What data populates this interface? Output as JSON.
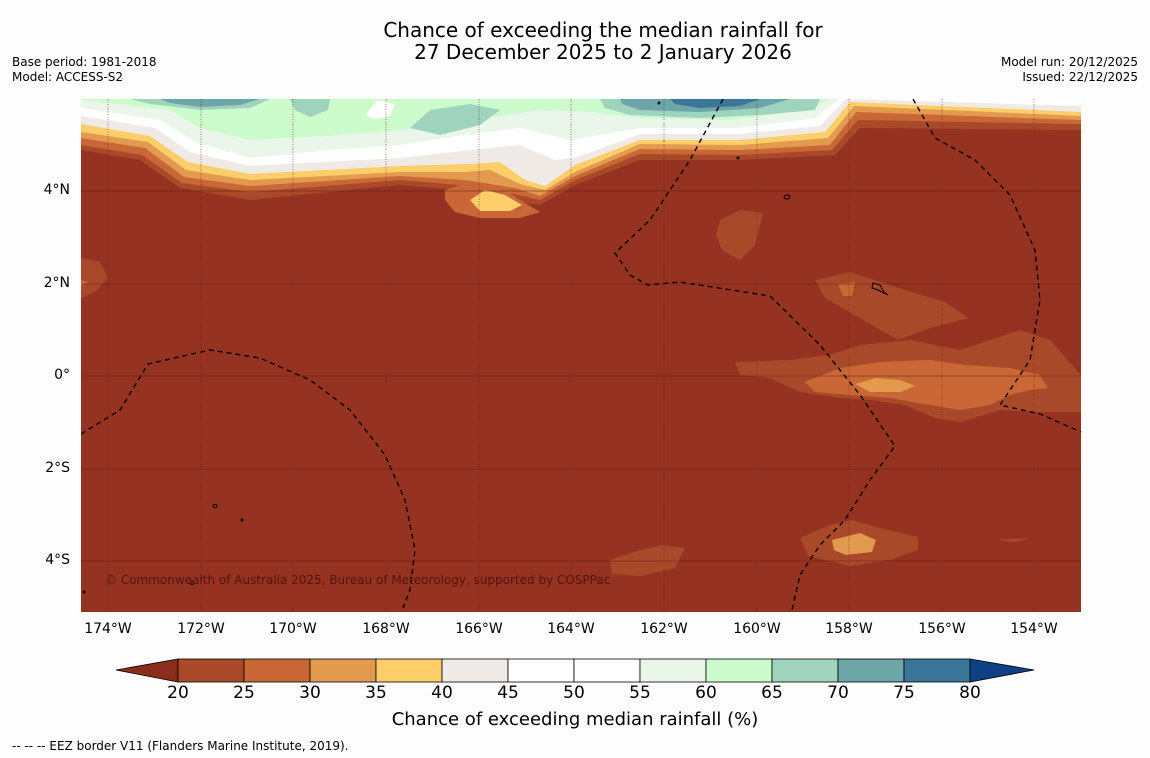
{
  "header": {
    "title_line1": "Chance of exceeding the median rainfall for",
    "title_line2": "27 December 2025 to 2 January 2026",
    "base_period": "Base period: 1981-2018",
    "model": "Model: ACCESS-S2",
    "model_run": "Model run: 20/12/2025",
    "issued": "Issued: 22/12/2025"
  },
  "map": {
    "lat_labels": [
      "4°N",
      "2°N",
      "0°",
      "2°S",
      "4°S"
    ],
    "lon_labels": [
      "174°W",
      "172°W",
      "170°W",
      "168°W",
      "166°W",
      "164°W",
      "162°W",
      "160°W",
      "158°W",
      "156°W",
      "154°W"
    ],
    "copyright": "© Commonwealth of Australia 2025, Bureau of Meteorology, supported by COSPPac",
    "colors": {
      "lt20": "#8c2d1b",
      "r20_25": "#a84a2a",
      "r25_30": "#c96836",
      "r30_35": "#e29a4e",
      "r35_40": "#fdce6a",
      "r40_45": "#efeae6",
      "r45_50": "#ffffff",
      "r50_55": "#ffffff",
      "r55_60": "#e9f6e9",
      "r60_65": "#ccfccc",
      "r65_70": "#9fd3bd",
      "r70_75": "#6da5a8",
      "r75_80": "#3b7599",
      "gt80": "#0f3f85",
      "base": "#953221"
    }
  },
  "colorbar": {
    "ticks": [
      "20",
      "25",
      "30",
      "35",
      "40",
      "45",
      "50",
      "55",
      "60",
      "65",
      "70",
      "75",
      "80"
    ],
    "label": "Chance of exceeding median rainfall (%)"
  },
  "footnote": "--  --  -- EEZ border V11 (Flanders Marine Institute, 2019)."
}
